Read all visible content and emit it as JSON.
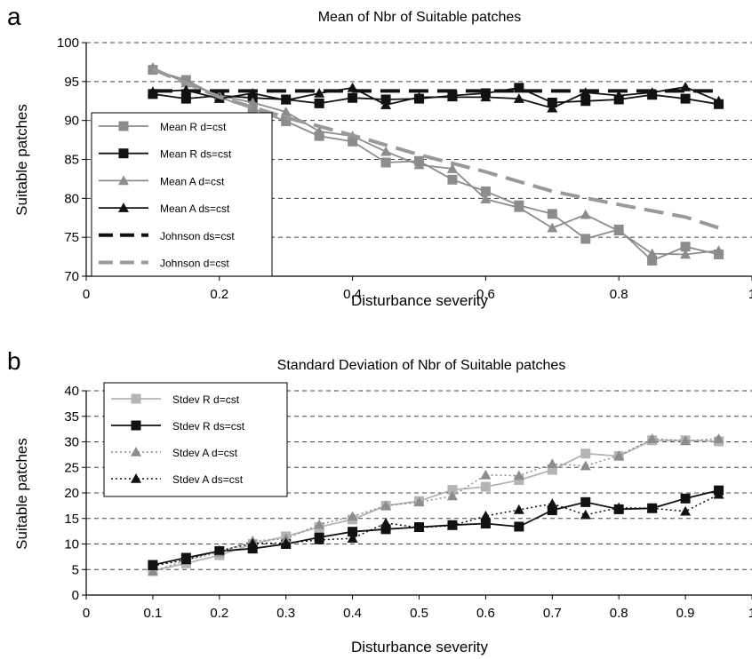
{
  "panels": [
    {
      "letter": "a",
      "title": "Mean of Nbr of Suitable patches",
      "xlabel": "Disturbance severity",
      "ylabel": "Suitable patches",
      "x_ticks": [
        "0",
        "0.2",
        "0.4",
        "0.6",
        "0.8",
        "1"
      ],
      "y_ticks": [
        "70",
        "75",
        "80",
        "85",
        "90",
        "95",
        "100"
      ],
      "legend": [
        "Mean R d=cst",
        "Mean R ds=cst",
        "Mean A d=cst",
        "Mean A ds=cst",
        "Johnson ds=cst",
        "Johnson d=cst"
      ]
    },
    {
      "letter": "b",
      "title": "Standard Deviation of Nbr of Suitable patches",
      "xlabel": "Disturbance severity",
      "ylabel": "Suitable patches",
      "x_ticks": [
        "0",
        "0.1",
        "0.2",
        "0.3",
        "0.4",
        "0.5",
        "0.6",
        "0.7",
        "0.8",
        "0.9",
        "1"
      ],
      "y_ticks": [
        "0",
        "5",
        "10",
        "15",
        "20",
        "25",
        "30",
        "35",
        "40"
      ],
      "legend": [
        "Stdev R d=cst",
        "Stdev R ds=cst",
        "Stdev A d=cst",
        "Stdev A ds=cst"
      ]
    }
  ],
  "colors": {
    "gray_series": "#8c8c8c",
    "black_series": "#111111",
    "light_gray_series": "#b4b4b4",
    "dashed_gray": "#999999",
    "grid": "#444444"
  },
  "chart_data": [
    {
      "type": "line",
      "title": "Mean of Nbr of Suitable patches",
      "xlabel": "Disturbance severity",
      "ylabel": "Suitable patches",
      "xlim": [
        0,
        1
      ],
      "ylim": [
        70,
        100
      ],
      "grid": "horizontal dashed",
      "legend_position": "left",
      "x": [
        0.1,
        0.15,
        0.2,
        0.25,
        0.3,
        0.35,
        0.4,
        0.45,
        0.5,
        0.55,
        0.6,
        0.65,
        0.7,
        0.75,
        0.8,
        0.85,
        0.9,
        0.95
      ],
      "series": [
        {
          "name": "Mean R d=cst",
          "marker": "square",
          "color": "#8c8c8c",
          "style": "solid",
          "values": [
            96.5,
            95.2,
            93.0,
            91.5,
            89.9,
            88.0,
            87.3,
            84.6,
            84.8,
            82.4,
            80.9,
            79.1,
            78.0,
            74.8,
            76.0,
            72.0,
            73.8,
            72.8
          ]
        },
        {
          "name": "Mean R ds=cst",
          "marker": "square",
          "color": "#111111",
          "style": "solid",
          "values": [
            93.4,
            92.8,
            93.2,
            92.9,
            92.7,
            92.2,
            92.9,
            92.7,
            92.8,
            93.2,
            93.5,
            94.2,
            92.3,
            92.5,
            92.7,
            93.3,
            92.8,
            92.1
          ]
        },
        {
          "name": "Mean A d=cst",
          "marker": "triangle",
          "color": "#8c8c8c",
          "style": "solid",
          "values": [
            96.8,
            94.8,
            93.2,
            92.3,
            91.1,
            88.6,
            88.0,
            86.0,
            84.3,
            83.8,
            79.9,
            78.8,
            76.2,
            77.9,
            75.8,
            72.9,
            72.8,
            73.3
          ]
        },
        {
          "name": "Mean A ds=cst",
          "marker": "triangle",
          "color": "#111111",
          "style": "solid",
          "values": [
            93.7,
            93.9,
            92.8,
            93.5,
            92.6,
            93.5,
            94.2,
            92.0,
            93.0,
            93.0,
            93.0,
            92.8,
            91.6,
            93.6,
            93.2,
            93.6,
            94.3,
            92.5
          ]
        },
        {
          "name": "Johnson ds=cst",
          "marker": "none",
          "color": "#111111",
          "style": "dashed-heavy",
          "x": [
            0.1,
            0.95
          ],
          "values": [
            93.8,
            93.8
          ]
        },
        {
          "name": "Johnson d=cst",
          "marker": "none",
          "color": "#999999",
          "style": "dashed-heavy",
          "x": [
            0.1,
            0.2,
            0.3,
            0.4,
            0.5,
            0.6,
            0.7,
            0.8,
            0.9,
            0.95
          ],
          "values": [
            96.6,
            93.0,
            90.4,
            88.1,
            85.6,
            83.4,
            80.9,
            79.2,
            77.6,
            76.2
          ]
        }
      ]
    },
    {
      "type": "line",
      "title": "Standard Deviation of Nbr of Suitable patches",
      "xlabel": "Disturbance severity",
      "ylabel": "Suitable patches",
      "xlim": [
        0,
        1
      ],
      "ylim": [
        0,
        40
      ],
      "grid": "horizontal dashed",
      "legend_position": "top-left",
      "x": [
        0.1,
        0.15,
        0.2,
        0.25,
        0.3,
        0.35,
        0.4,
        0.45,
        0.5,
        0.55,
        0.6,
        0.65,
        0.7,
        0.75,
        0.8,
        0.85,
        0.9,
        0.95
      ],
      "series": [
        {
          "name": "Stdev R d=cst",
          "marker": "square",
          "color": "#b4b4b4",
          "style": "solid",
          "values": [
            4.8,
            6.2,
            7.8,
            10.0,
            11.5,
            13.3,
            14.8,
            17.5,
            18.4,
            20.6,
            21.2,
            22.5,
            24.5,
            27.7,
            27.2,
            30.3,
            30.3,
            30.1
          ]
        },
        {
          "name": "Stdev R ds=cst",
          "marker": "square",
          "color": "#111111",
          "style": "solid",
          "values": [
            5.9,
            7.3,
            8.6,
            9.1,
            10.0,
            11.3,
            12.4,
            12.9,
            13.3,
            13.7,
            14.0,
            13.4,
            16.6,
            18.2,
            16.8,
            17.0,
            18.9,
            20.5
          ]
        },
        {
          "name": "Stdev A d=cst",
          "marker": "triangle",
          "color": "#8c8c8c",
          "style": "dotted",
          "values": [
            4.6,
            6.8,
            8.4,
            10.6,
            11.0,
            13.8,
            15.4,
            17.5,
            18.2,
            19.4,
            23.5,
            23.4,
            25.7,
            25.3,
            27.3,
            30.6,
            30.2,
            30.6
          ]
        },
        {
          "name": "Stdev A ds=cst",
          "marker": "triangle",
          "color": "#111111",
          "style": "dotted",
          "values": [
            5.7,
            6.9,
            8.7,
            10.1,
            10.2,
            10.8,
            11.1,
            14.1,
            13.2,
            13.6,
            15.5,
            16.7,
            17.9,
            15.7,
            17.1,
            17.0,
            16.4,
            19.7
          ]
        }
      ]
    }
  ]
}
